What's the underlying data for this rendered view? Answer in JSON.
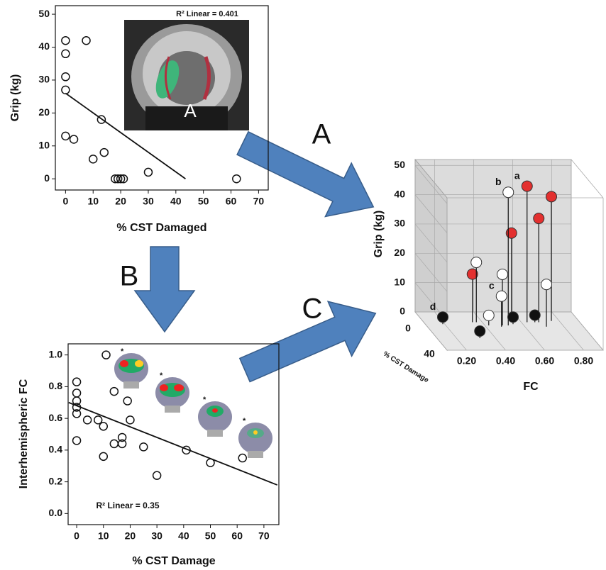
{
  "panel_labels": [
    "A",
    "B",
    "C"
  ],
  "chart_data": [
    {
      "type": "scatter",
      "x_label": "% CST Damaged",
      "y_label": "Grip (kg)",
      "annotation": "R² Linear = 0.401",
      "image_label": "A",
      "x": [
        0,
        0,
        0,
        0,
        0,
        3,
        7.5,
        10,
        13,
        14,
        18,
        19,
        20,
        21,
        30,
        62
      ],
      "values": [
        42,
        38,
        31,
        27,
        13,
        12,
        42,
        6,
        18,
        8,
        0,
        0,
        0,
        0,
        2,
        0
      ],
      "fit": {
        "x": [
          0,
          43.5
        ],
        "values": [
          26,
          0
        ]
      },
      "xlim": [
        -3.7,
        73.5
      ],
      "ylim": [
        -3.4,
        52.6
      ],
      "xticks": [
        0,
        10,
        20,
        30,
        40,
        50,
        60,
        70
      ],
      "yticks": [
        0,
        10,
        20,
        30,
        40,
        50
      ]
    },
    {
      "type": "scatter",
      "x_label": "% CST Damage",
      "y_label": "Interhemispheric FC",
      "annotation": "R² Linear = 0.35",
      "inset_marks": [
        "*",
        "*",
        "*",
        "*"
      ],
      "x": [
        0,
        0,
        0,
        0,
        0,
        0,
        4,
        8,
        10,
        10,
        11,
        14,
        14,
        17,
        17,
        19,
        20,
        25,
        30,
        41,
        50,
        62
      ],
      "values": [
        0.83,
        0.76,
        0.71,
        0.67,
        0.63,
        0.46,
        0.59,
        0.59,
        0.36,
        0.55,
        1.0,
        0.77,
        0.44,
        0.44,
        0.48,
        0.71,
        0.59,
        0.42,
        0.24,
        0.4,
        0.32,
        0.35
      ],
      "fit": {
        "x": [
          -3,
          75
        ],
        "values": [
          0.7,
          0.18
        ]
      },
      "xlim": [
        -3.2,
        75.6
      ],
      "ylim": [
        -0.07,
        1.07
      ],
      "xticks": [
        0,
        10,
        20,
        30,
        40,
        50,
        60,
        70
      ],
      "yticks": [
        {
          "value": 0,
          "label": "0.0"
        },
        {
          "value": 0.2,
          "label": "0.2"
        },
        {
          "value": 0.4,
          "label": "0.4"
        },
        {
          "value": 0.6,
          "label": "0.6"
        },
        {
          "value": 0.8,
          "label": "0.8"
        },
        {
          "value": 1,
          "label": "1.0"
        }
      ]
    },
    {
      "type": "scatter3d",
      "x_label": "FC",
      "y_label": "Grip (kg)",
      "z_label": "% CST Damage",
      "x": [
        0.66,
        0.79,
        0.72,
        0.58,
        0.38,
        0.55,
        0.4,
        0.52,
        0.51,
        0.74,
        0.45,
        0.22,
        0.35,
        0.58,
        0.7
      ],
      "z": [
        5,
        3,
        5,
        5,
        5,
        10,
        5,
        10,
        12,
        12,
        10,
        8,
        30,
        8,
        5
      ],
      "values": [
        44,
        40,
        33,
        28,
        14,
        43,
        18,
        15,
        8,
        12,
        1,
        0,
        0,
        0,
        0
      ],
      "colors": [
        "#e3302f",
        "#e3302f",
        "#e3302f",
        "#e3302f",
        "#e3302f",
        "#ffffff",
        "#ffffff",
        "#ffffff",
        "#ffffff",
        "#ffffff",
        "#ffffff",
        "#111111",
        "#111111",
        "#111111",
        "#111111"
      ],
      "point_labels": [
        "a",
        null,
        null,
        null,
        null,
        "b",
        null,
        null,
        "c",
        null,
        null,
        "d",
        null,
        null,
        null
      ],
      "xlim": [
        0.1,
        0.9
      ],
      "ylim": [
        0,
        52
      ],
      "zlim": [
        0,
        60
      ],
      "xticks": [
        {
          "value": 0.2,
          "label": "0.20"
        },
        {
          "value": 0.4,
          "label": "0.40"
        },
        {
          "value": 0.6,
          "label": "0.60"
        },
        {
          "value": 0.8,
          "label": "0.80"
        }
      ],
      "yticks": [
        0,
        10,
        20,
        30,
        40,
        50
      ],
      "zticks": [
        0,
        40
      ]
    }
  ]
}
